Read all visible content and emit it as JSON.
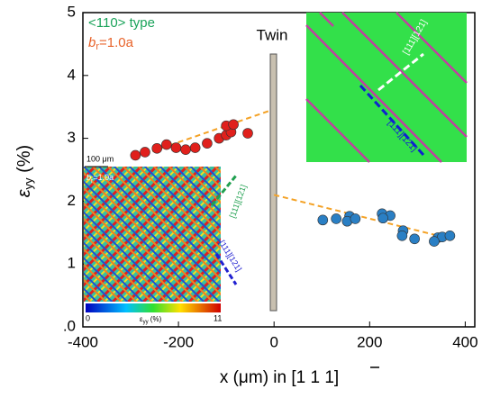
{
  "chart_data": {
    "type": "scatter",
    "annotations": {
      "type_label": "<110> type",
      "br_b": "b",
      "br_sub": "r",
      "br_rest": "=1.0a",
      "twin": "Twin",
      "inset_scale": "100 μm",
      "inset_b": "b",
      "inset_sub": "r",
      "inset_rest": "=1.0a",
      "cbar_min": "0",
      "cbar_mid": "ε",
      "cbar_mid_sub": "yy",
      "cbar_mid_rest": " (%)",
      "cbar_max": "11",
      "dir_a": "[111][121]",
      "dir_b": "[111][121]",
      "dir_c": "[111][121]",
      "dir_d": "[111][121]"
    },
    "xlabel": "x (μm) in [1 1 1]",
    "ylabel_eps": "ε",
    "ylabel_sub": "yy",
    "ylabel_rest": " (%)",
    "xlim": [
      -400,
      420
    ],
    "ylim": [
      0,
      5
    ],
    "xticks": [
      -400,
      -200,
      0,
      200,
      400
    ],
    "yticks": [
      {
        "value": 0,
        "label": ".0"
      },
      1,
      2,
      3,
      4,
      5
    ],
    "points": [
      {
        "color": "#e0201c",
        "x": [
          -290,
          -270,
          -245,
          -225,
          -205,
          -185,
          -165,
          -140,
          -115,
          -100,
          -90,
          -100,
          -85,
          -55
        ],
        "y": [
          2.73,
          2.78,
          2.84,
          2.9,
          2.85,
          2.82,
          2.85,
          2.92,
          3.0,
          3.05,
          3.1,
          3.2,
          3.22,
          3.08
        ]
      },
      {
        "color": "#2a7fc4",
        "x": [
          102,
          130,
          158,
          153,
          170,
          226,
          243,
          228,
          270,
          268,
          294,
          343,
          352,
          368,
          335
        ],
        "y": [
          1.7,
          1.72,
          1.76,
          1.68,
          1.72,
          1.8,
          1.77,
          1.73,
          1.53,
          1.45,
          1.4,
          1.42,
          1.43,
          1.45,
          1.36
        ]
      }
    ],
    "fits": [
      {
        "color": "#f4a226",
        "x": [
          -290,
          -5
        ],
        "y": [
          2.7,
          3.45
        ]
      },
      {
        "color": "#f4a226",
        "x": [
          0,
          370
        ],
        "y": [
          2.1,
          1.4
        ]
      }
    ]
  }
}
